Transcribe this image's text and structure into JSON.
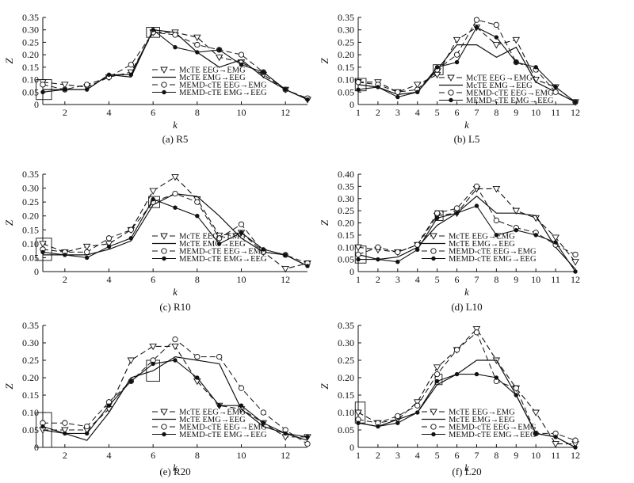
{
  "chart_data": [
    {
      "type": "line",
      "title": "(a) R5",
      "xlabel": "k",
      "ylabel": "Z",
      "xlim": [
        1,
        13
      ],
      "ylim": [
        0,
        0.35
      ],
      "x_ticks": [
        2,
        4,
        6,
        8,
        10,
        12
      ],
      "y_ticks": [
        "0",
        "0.05",
        "0.10",
        "0.15",
        "0.20",
        "0.25",
        "0.30",
        "0.35"
      ],
      "legend_position": "bottom-right",
      "highlight_boxes": [
        {
          "x": [
            0.7,
            1.4
          ],
          "y": [
            0.02,
            0.1
          ]
        },
        {
          "x": [
            5.7,
            6.3
          ],
          "y": [
            0.27,
            0.31
          ]
        }
      ],
      "x": [
        1,
        2,
        3,
        4,
        5,
        6,
        7,
        8,
        9,
        10,
        11,
        12,
        13
      ],
      "series": [
        {
          "name": "McTE EEG→EMG",
          "values": [
            0.09,
            0.08,
            0.07,
            0.11,
            0.13,
            0.29,
            0.29,
            0.27,
            0.19,
            0.17,
            0.12,
            0.06,
            0.02
          ]
        },
        {
          "name": "McTE EMG→EEG",
          "values": [
            0.06,
            0.06,
            0.06,
            0.12,
            0.11,
            0.3,
            0.29,
            0.21,
            0.15,
            0.18,
            0.11,
            0.06,
            0.02
          ]
        },
        {
          "name": "MEMD-cTE EEG→EMG",
          "values": [
            0.08,
            0.06,
            0.08,
            0.11,
            0.16,
            0.29,
            0.28,
            0.24,
            0.22,
            0.2,
            0.13,
            0.06,
            0.025
          ]
        },
        {
          "name": "MEMD-cTE EMG→EEG",
          "values": [
            0.05,
            0.06,
            0.06,
            0.12,
            0.12,
            0.3,
            0.23,
            0.21,
            0.22,
            0.16,
            0.13,
            0.06,
            0.02
          ]
        }
      ]
    },
    {
      "type": "line",
      "title": "(b) L5",
      "xlabel": "k",
      "ylabel": "Z",
      "xlim": [
        1,
        12
      ],
      "ylim": [
        0,
        0.35
      ],
      "x_ticks": [
        1,
        2,
        3,
        4,
        5,
        6,
        7,
        8,
        9,
        10,
        11,
        12
      ],
      "y_ticks": [
        "0",
        "0.05",
        "0.10",
        "0.15",
        "0.20",
        "0.25",
        "0.30",
        "0.35"
      ],
      "legend_position": "top-right",
      "highlight_boxes": [
        {
          "x": [
            0.85,
            1.4
          ],
          "y": [
            0.055,
            0.105
          ]
        },
        {
          "x": [
            4.8,
            5.3
          ],
          "y": [
            0.12,
            0.16
          ]
        }
      ],
      "x": [
        1,
        2,
        3,
        4,
        5,
        6,
        7,
        8,
        9,
        10,
        11,
        12
      ],
      "series": [
        {
          "name": "McTE EEG→EMG",
          "values": [
            0.09,
            0.09,
            0.05,
            0.08,
            0.12,
            0.26,
            0.31,
            0.24,
            0.26,
            0.1,
            0.07,
            0.01
          ]
        },
        {
          "name": "McTE EMG→EEG",
          "values": [
            0.08,
            0.07,
            0.04,
            0.05,
            0.14,
            0.24,
            0.24,
            0.19,
            0.23,
            0.09,
            0.05,
            0.01
          ]
        },
        {
          "name": "MEMD-cTE EEG→EMG",
          "values": [
            0.09,
            0.08,
            0.05,
            0.06,
            0.14,
            0.2,
            0.34,
            0.32,
            0.17,
            0.14,
            0.05,
            0.01
          ]
        },
        {
          "name": "MEMD-cTE EMG→EEG",
          "values": [
            0.06,
            0.07,
            0.03,
            0.05,
            0.15,
            0.17,
            0.31,
            0.27,
            0.17,
            0.15,
            0.07,
            0.01
          ]
        }
      ]
    },
    {
      "type": "line",
      "title": "(c) R10",
      "xlabel": "k",
      "ylabel": "Z",
      "xlim": [
        1,
        13
      ],
      "ylim": [
        0,
        0.35
      ],
      "x_ticks": [
        2,
        4,
        6,
        8,
        10,
        12
      ],
      "y_ticks": [
        "0",
        "0.05",
        "0.10",
        "0.15",
        "0.20",
        "0.25",
        "0.30",
        "0.35"
      ],
      "legend_position": "bottom-right",
      "highlight_boxes": [
        {
          "x": [
            0.7,
            1.4
          ],
          "y": [
            0.04,
            0.12
          ]
        },
        {
          "x": [
            5.8,
            6.3
          ],
          "y": [
            0.23,
            0.27
          ]
        }
      ],
      "x": [
        1,
        2,
        3,
        4,
        5,
        6,
        7,
        8,
        9,
        10,
        11,
        12,
        13
      ],
      "series": [
        {
          "name": "McTE EEG→EMG",
          "values": [
            0.1,
            0.07,
            0.09,
            0.1,
            0.15,
            0.29,
            0.34,
            0.26,
            0.13,
            0.14,
            0.07,
            0.01,
            0.03
          ]
        },
        {
          "name": "McTE EMG→EEG",
          "values": [
            0.06,
            0.06,
            0.06,
            0.08,
            0.11,
            0.24,
            0.28,
            0.27,
            0.2,
            0.12,
            0.07,
            0.06,
            0.02
          ]
        },
        {
          "name": "MEMD-cTE EEG→EMG",
          "values": [
            0.08,
            0.07,
            0.07,
            0.12,
            0.15,
            0.25,
            0.28,
            0.25,
            0.12,
            0.17,
            0.07,
            0.06,
            0.03
          ]
        },
        {
          "name": "MEMD-cTE EMG→EEG",
          "values": [
            0.07,
            0.06,
            0.05,
            0.09,
            0.12,
            0.26,
            0.23,
            0.2,
            0.1,
            0.14,
            0.08,
            0.06,
            0.02
          ]
        }
      ]
    },
    {
      "type": "line",
      "title": "(d) L10",
      "xlabel": "k",
      "ylabel": "Z",
      "xlim": [
        1,
        12
      ],
      "ylim": [
        0,
        0.4
      ],
      "x_ticks": [
        1,
        2,
        3,
        4,
        5,
        6,
        7,
        8,
        9,
        10,
        11,
        12
      ],
      "y_ticks": [
        "0",
        "0.05",
        "0.10",
        "0.15",
        "0.20",
        "0.25",
        "0.30",
        "0.35",
        "0.40"
      ],
      "legend_position": "bottom-right",
      "highlight_boxes": [
        {
          "x": [
            0.85,
            1.4
          ],
          "y": [
            0.035,
            0.105
          ]
        },
        {
          "x": [
            4.9,
            5.3
          ],
          "y": [
            0.21,
            0.25
          ]
        }
      ],
      "x": [
        1,
        2,
        3,
        4,
        5,
        6,
        7,
        8,
        9,
        10,
        11,
        12
      ],
      "series": [
        {
          "name": "McTE  EEG→EMG",
          "values": [
            0.1,
            0.09,
            0.08,
            0.11,
            0.23,
            0.24,
            0.34,
            0.34,
            0.25,
            0.22,
            0.14,
            0.04
          ]
        },
        {
          "name": "McTE  EMG→EEG",
          "values": [
            0.07,
            0.05,
            0.06,
            0.1,
            0.19,
            0.24,
            0.31,
            0.24,
            0.24,
            0.23,
            0.1,
            0.01
          ]
        },
        {
          "name": "MEMD-cTE EEG→EMG",
          "values": [
            0.07,
            0.1,
            0.08,
            0.11,
            0.24,
            0.26,
            0.35,
            0.21,
            0.18,
            0.16,
            0.11,
            0.07
          ]
        },
        {
          "name": "MEMD-cTE EMG→EEG",
          "values": [
            0.05,
            0.05,
            0.04,
            0.09,
            0.22,
            0.24,
            0.27,
            0.15,
            0.17,
            0.15,
            0.12,
            0.0
          ]
        }
      ]
    },
    {
      "type": "line",
      "title": "(e) R20",
      "xlabel": "k",
      "ylabel": "Z",
      "xlim": [
        1,
        13
      ],
      "ylim": [
        0,
        0.35
      ],
      "x_ticks": [
        2,
        4,
        6,
        8,
        10,
        12
      ],
      "y_ticks": [
        "0",
        "0.05",
        "0.10",
        "0.15",
        "0.20",
        "0.25",
        "0.30",
        "0.35"
      ],
      "legend_position": "bottom-right",
      "highlight_boxes": [
        {
          "x": [
            0.7,
            1.4
          ],
          "y": [
            0.0,
            0.1
          ]
        },
        {
          "x": [
            5.7,
            6.3
          ],
          "y": [
            0.19,
            0.25
          ]
        }
      ],
      "x": [
        1,
        2,
        3,
        4,
        5,
        6,
        7,
        8,
        9,
        10,
        11,
        12,
        13
      ],
      "series": [
        {
          "name": "McTE EEG→EMG",
          "values": [
            0.05,
            0.05,
            0.05,
            0.11,
            0.25,
            0.29,
            0.29,
            0.19,
            0.12,
            0.11,
            0.07,
            0.03,
            0.03
          ]
        },
        {
          "name": "McTE EMG→EEG",
          "values": [
            0.05,
            0.04,
            0.02,
            0.1,
            0.2,
            0.22,
            0.26,
            0.25,
            0.24,
            0.11,
            0.06,
            0.04,
            0.02
          ]
        },
        {
          "name": "MEMD-cTE EEG→EMG",
          "values": [
            0.07,
            0.07,
            0.06,
            0.13,
            0.19,
            0.25,
            0.31,
            0.26,
            0.26,
            0.17,
            0.1,
            0.05,
            0.01
          ]
        },
        {
          "name": "MEMD-cTE EMG→EEG",
          "values": [
            0.06,
            0.04,
            0.04,
            0.12,
            0.19,
            0.24,
            0.25,
            0.2,
            0.12,
            0.12,
            0.07,
            0.04,
            0.03
          ]
        }
      ]
    },
    {
      "type": "line",
      "title": "(f) L20",
      "xlabel": "k",
      "ylabel": "Z",
      "xlim": [
        1,
        12
      ],
      "ylim": [
        0,
        0.35
      ],
      "x_ticks": [
        1,
        2,
        3,
        4,
        5,
        6,
        7,
        8,
        9,
        10,
        11,
        12
      ],
      "y_ticks": [
        "0",
        "0.05",
        "0.10",
        "0.15",
        "0.20",
        "0.25",
        "0.30",
        "0.35"
      ],
      "legend_position": "bottom-right",
      "highlight_boxes": [
        {
          "x": [
            0.85,
            1.35
          ],
          "y": [
            0.07,
            0.13
          ]
        },
        {
          "x": [
            4.9,
            5.25
          ],
          "y": [
            0.18,
            0.21
          ]
        }
      ],
      "x": [
        1,
        2,
        3,
        4,
        5,
        6,
        7,
        8,
        9,
        10,
        11,
        12
      ],
      "series": [
        {
          "name": "McTE EEG→EMG",
          "values": [
            0.1,
            0.07,
            0.08,
            0.13,
            0.23,
            0.28,
            0.34,
            0.25,
            0.17,
            0.1,
            0.01,
            0.01
          ]
        },
        {
          "name": "McTE EMG→EEG",
          "values": [
            0.07,
            0.06,
            0.08,
            0.1,
            0.18,
            0.21,
            0.25,
            0.25,
            0.15,
            0.04,
            0.03,
            0.0
          ]
        },
        {
          "name": "MEMD-cTE EEG→EMG",
          "values": [
            0.08,
            0.07,
            0.09,
            0.12,
            0.21,
            0.28,
            0.33,
            0.19,
            0.17,
            0.04,
            0.04,
            0.02
          ]
        },
        {
          "name": "MEMD-cTE EMG→EEG",
          "values": [
            0.07,
            0.06,
            0.07,
            0.1,
            0.19,
            0.21,
            0.21,
            0.2,
            0.15,
            0.04,
            0.03,
            0.0
          ]
        }
      ]
    }
  ]
}
